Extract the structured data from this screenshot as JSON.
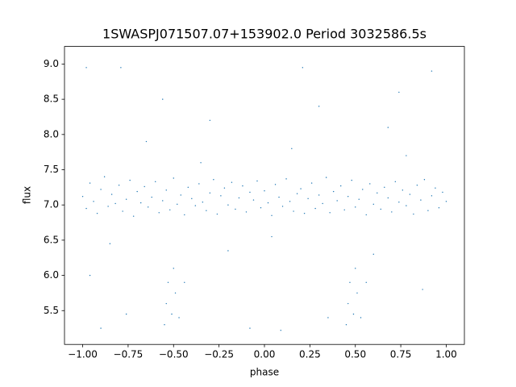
{
  "chart_data": {
    "type": "scatter",
    "title": "1SWASPJ071507.07+153902.0 Period 3032586.5s",
    "xlabel": "phase",
    "ylabel": "flux",
    "color": "#1f77b4",
    "xlim": [
      -1.1,
      1.1
    ],
    "ylim": [
      5.02,
      9.25
    ],
    "xticks": [
      {
        "value": -1,
        "label": "−1.00"
      },
      {
        "value": -0.75,
        "label": "−0.75"
      },
      {
        "value": -0.5,
        "label": "−0.50"
      },
      {
        "value": -0.25,
        "label": "−0.25"
      },
      {
        "value": 0,
        "label": "0.00"
      },
      {
        "value": 0.25,
        "label": "0.25"
      },
      {
        "value": 0.5,
        "label": "0.50"
      },
      {
        "value": 0.75,
        "label": "0.75"
      },
      {
        "value": 1,
        "label": "1.00"
      }
    ],
    "yticks": [
      {
        "value": 5.5,
        "label": "5.5"
      },
      {
        "value": 6,
        "label": "6.0"
      },
      {
        "value": 6.5,
        "label": "6.5"
      },
      {
        "value": 7,
        "label": "7.0"
      },
      {
        "value": 7.5,
        "label": "7.5"
      },
      {
        "value": 8,
        "label": "8.0"
      },
      {
        "value": 8.5,
        "label": "8.5"
      },
      {
        "value": 9,
        "label": "9.0"
      }
    ],
    "x": [
      -1.0,
      -0.98,
      -0.96,
      -0.94,
      -0.92,
      -0.9,
      -0.88,
      -0.86,
      -0.84,
      -0.82,
      -0.8,
      -0.78,
      -0.76,
      -0.74,
      -0.72,
      -0.7,
      -0.68,
      -0.66,
      -0.64,
      -0.62,
      -0.6,
      -0.58,
      -0.56,
      -0.54,
      -0.52,
      -0.5,
      -0.48,
      -0.46,
      -0.44,
      -0.42,
      -0.4,
      -0.38,
      -0.36,
      -0.34,
      -0.32,
      -0.3,
      -0.28,
      -0.26,
      -0.24,
      -0.22,
      -0.2,
      -0.18,
      -0.16,
      -0.14,
      -0.12,
      -0.1,
      -0.08,
      -0.06,
      -0.04,
      -0.02,
      0.0,
      0.02,
      0.04,
      0.06,
      0.08,
      0.1,
      0.12,
      0.14,
      0.16,
      0.18,
      0.2,
      0.22,
      0.24,
      0.26,
      0.28,
      0.3,
      0.32,
      0.34,
      0.36,
      0.38,
      0.4,
      0.42,
      0.44,
      0.46,
      0.48,
      0.5,
      0.52,
      0.54,
      0.56,
      0.58,
      0.6,
      0.62,
      0.64,
      0.66,
      0.68,
      0.7,
      0.72,
      0.74,
      0.76,
      0.78,
      0.8,
      0.82,
      0.84,
      0.86,
      0.88,
      0.9,
      0.92,
      0.94,
      0.96,
      0.98,
      1.0,
      -0.55,
      -0.54,
      -0.53,
      -0.51,
      -0.5,
      -0.49,
      -0.47,
      -0.44,
      0.45,
      0.46,
      0.47,
      0.49,
      0.5,
      0.51,
      0.53,
      0.56,
      -0.79,
      -0.56,
      0.21,
      0.92,
      -0.98,
      -0.3,
      0.68,
      -0.9,
      0.09,
      -0.08,
      0.35,
      -0.76,
      0.87,
      -0.96,
      0.6,
      -0.2,
      0.15,
      -0.65,
      0.78,
      -0.35,
      0.3,
      0.74,
      -0.85,
      0.04
    ],
    "values": [
      7.12,
      6.95,
      7.31,
      7.05,
      6.88,
      7.22,
      7.4,
      6.98,
      7.15,
      7.02,
      7.28,
      6.91,
      7.08,
      7.35,
      6.84,
      7.19,
      7.03,
      7.26,
      6.97,
      7.11,
      7.33,
      6.89,
      7.06,
      7.21,
      6.93,
      7.38,
      7.01,
      7.14,
      6.86,
      7.25,
      7.09,
      6.99,
      7.3,
      7.04,
      6.92,
      7.17,
      7.36,
      6.87,
      7.13,
      7.24,
      7.0,
      7.32,
      6.94,
      7.1,
      7.27,
      6.9,
      7.18,
      7.07,
      7.34,
      6.96,
      7.2,
      7.03,
      6.85,
      7.29,
      7.11,
      6.98,
      7.37,
      7.05,
      6.91,
      7.16,
      7.23,
      6.88,
      7.09,
      7.31,
      6.95,
      7.14,
      7.02,
      7.39,
      6.89,
      7.19,
      7.06,
      7.27,
      6.93,
      7.12,
      7.35,
      6.97,
      7.08,
      7.22,
      6.86,
      7.3,
      7.01,
      7.17,
      6.94,
      7.25,
      7.1,
      6.9,
      7.33,
      7.04,
      7.21,
      6.99,
      7.15,
      6.87,
      7.28,
      7.07,
      7.36,
      6.92,
      7.13,
      7.24,
      6.96,
      7.18,
      7.05,
      5.3,
      5.6,
      5.9,
      5.45,
      6.1,
      5.75,
      5.4,
      5.9,
      5.3,
      5.6,
      5.9,
      5.45,
      6.1,
      5.75,
      5.4,
      5.9,
      8.95,
      8.5,
      8.95,
      8.9,
      8.95,
      8.2,
      8.1,
      5.25,
      5.22,
      5.25,
      5.4,
      5.45,
      5.8,
      6.0,
      6.3,
      6.35,
      7.8,
      7.9,
      7.7,
      7.6,
      8.4,
      8.6,
      6.45,
      6.55
    ]
  }
}
